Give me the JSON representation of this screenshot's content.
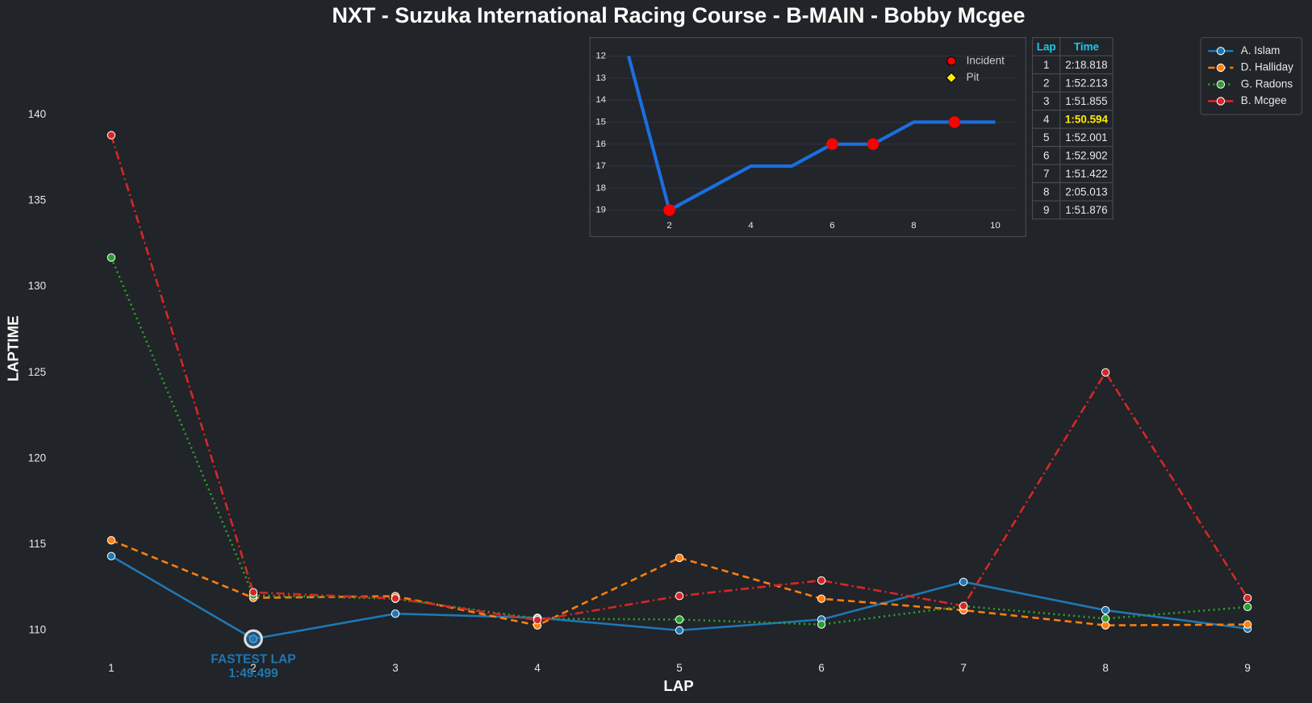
{
  "chart_data": [
    {
      "type": "line",
      "title": "NXT - Suzuka International Racing Course - B-MAIN - Bobby Mcgee",
      "x_label": "LAP",
      "y_label": "LAPTIME",
      "x": [
        1,
        2,
        3,
        4,
        5,
        6,
        7,
        8,
        9
      ],
      "xlim": [
        0.6,
        9.4
      ],
      "xticks": [
        1,
        2,
        3,
        4,
        5,
        6,
        7,
        8,
        9
      ],
      "ylim": [
        108.3,
        144.5
      ],
      "yticks": [
        110,
        115,
        120,
        125,
        130,
        135,
        140
      ],
      "grid": false,
      "legend": "upper right",
      "series": [
        {
          "name": "A. Islam",
          "color": "#1f77b4",
          "dash": "solid",
          "values": [
            114.32,
            109.499,
            110.97,
            110.73,
            110.0,
            110.63,
            112.82,
            111.17,
            110.1
          ]
        },
        {
          "name": "D. Halliday",
          "color": "#ff7f0e",
          "dash": "dashed",
          "values": [
            115.24,
            111.89,
            111.99,
            110.29,
            114.22,
            111.84,
            111.17,
            110.29,
            110.34
          ]
        },
        {
          "name": "G. Radons",
          "color": "#2ca02c",
          "dash": "dotted",
          "values": [
            131.7,
            112.04,
            111.84,
            110.68,
            110.63,
            110.34,
            111.41,
            110.68,
            111.36
          ]
        },
        {
          "name": "B. Mcgee",
          "color": "#d62728",
          "dash": "dashdot",
          "values": [
            138.818,
            112.213,
            111.855,
            110.594,
            112.001,
            112.902,
            111.422,
            125.013,
            111.876
          ]
        }
      ],
      "annotation": {
        "lines": [
          "FASTEST LAP",
          "1:49.499"
        ],
        "x": 2,
        "y": 109.499,
        "color": "#1f77b4"
      }
    },
    {
      "type": "position",
      "x": [
        1,
        2,
        3,
        4,
        5,
        6,
        7,
        8,
        9,
        10
      ],
      "values": [
        12,
        19,
        18,
        17,
        17,
        16,
        16,
        15,
        15,
        15
      ],
      "color": "#1a6fdf",
      "xlim": [
        0.05,
        10.75
      ],
      "xticks": [
        2,
        4,
        6,
        8,
        10
      ],
      "ylim": [
        11.16,
        20.2
      ],
      "yticks": [
        12,
        13,
        14,
        15,
        16,
        17,
        18,
        19
      ],
      "invert_y": true,
      "grid": true,
      "markers": [
        {
          "name": "Incident",
          "color": "#ff0000",
          "shape": "circle",
          "laps": [
            2,
            6,
            7,
            9
          ]
        },
        {
          "name": "Pit",
          "color": "#ffee00",
          "shape": "diamond",
          "laps": []
        }
      ]
    }
  ],
  "table": {
    "columns": [
      "Lap",
      "Time"
    ],
    "rows": [
      [
        1,
        "2:18.818"
      ],
      [
        2,
        "1:52.213"
      ],
      [
        3,
        "1:51.855"
      ],
      [
        4,
        "1:50.594"
      ],
      [
        5,
        "1:52.001"
      ],
      [
        6,
        "1:52.902"
      ],
      [
        7,
        "1:51.422"
      ],
      [
        8,
        "2:05.013"
      ],
      [
        9,
        "1:51.876"
      ]
    ],
    "highlight_row": 3
  }
}
